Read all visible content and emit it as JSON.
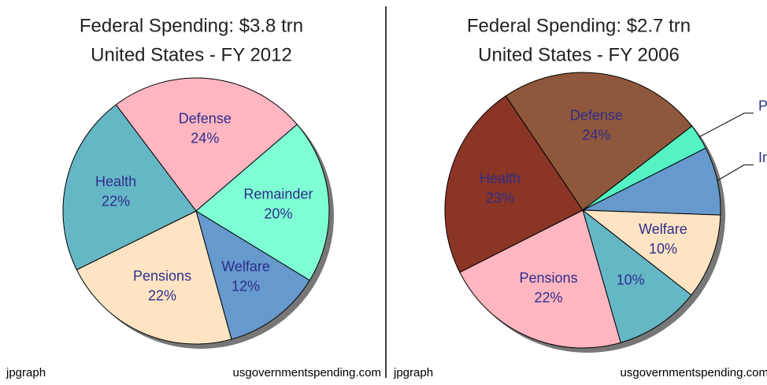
{
  "chart_data": [
    {
      "type": "pie",
      "title": "Federal Spending: $3.8 trn",
      "subtitle": "United States - FY 2012",
      "categories": [
        "Defense",
        "Remainder",
        "Welfare",
        "Pensions",
        "Health"
      ],
      "values": [
        24,
        20,
        12,
        22,
        22
      ],
      "value_labels": [
        "24%",
        "20%",
        "12%",
        "22%",
        "22%"
      ],
      "colors": [
        "#ffb6c1",
        "#7fffd4",
        "#6699cc",
        "#ffe4c4",
        "#66b7c6"
      ],
      "footer_left": "jpgraph",
      "footer_right": "usgovernmentspending.com"
    },
    {
      "type": "pie",
      "title": "Federal Spending: $2.7 trn",
      "subtitle": "United States - FY 2006",
      "categories": [
        "Defense",
        "P",
        "In",
        "Welfare",
        null,
        "Pensions",
        "Health"
      ],
      "values": [
        24,
        3,
        8,
        10,
        10,
        22,
        23
      ],
      "value_labels": [
        "24%",
        null,
        null,
        "10%",
        "10%",
        "22%",
        "23%"
      ],
      "colors": [
        "#8f573b",
        "#55f2c4",
        "#6699cc",
        "#ffe4c4",
        "#66b7c6",
        "#ffb6c1",
        "#8b3526"
      ],
      "footer_left": "jpgraph",
      "footer_right": "usgovernmentspending.com"
    }
  ]
}
